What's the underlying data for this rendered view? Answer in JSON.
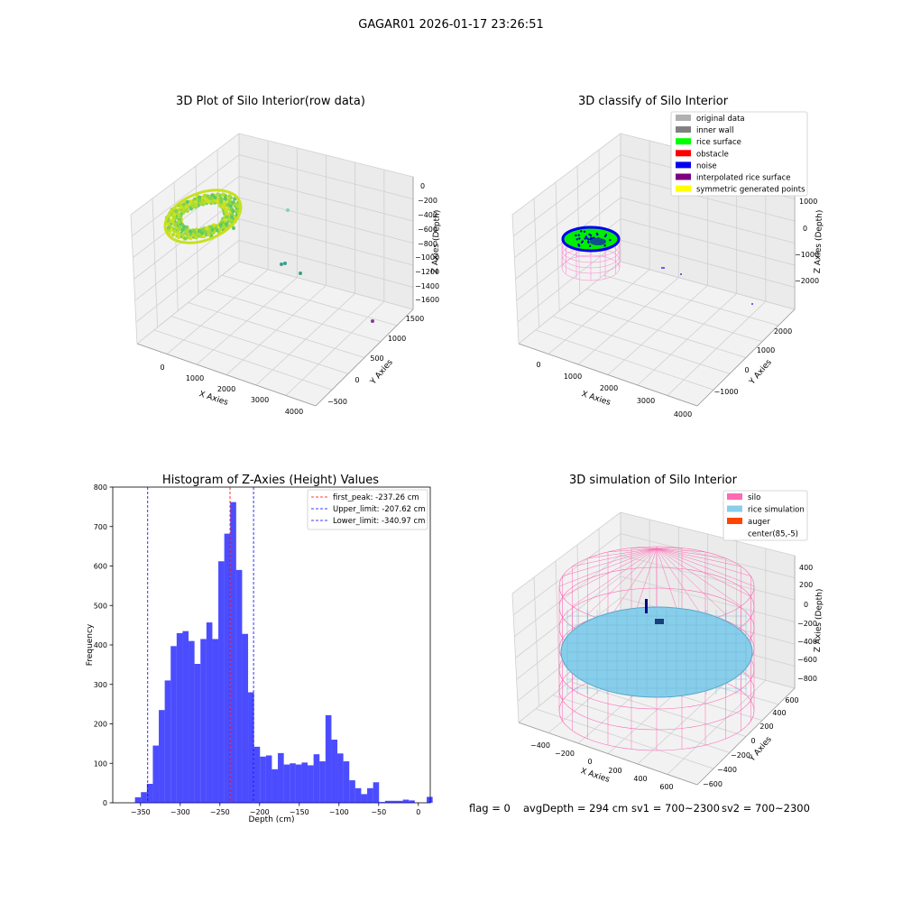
{
  "suptitle": "GAGAR01 2026-01-17 23:26:51",
  "status": {
    "flag": "flag = 0",
    "avg": "avgDepth = 294 cm",
    "sv1": "sv1 = 700~2300",
    "sv2": "sv2 = 700~2300"
  },
  "chart_data": [
    {
      "type": "scatter",
      "projection": "3d",
      "title": "3D Plot of Silo Interior(row data)",
      "xlabel": "X Axies",
      "ylabel": "Y Axies",
      "zlabel": "Z Axies (Depth)",
      "xticks": [
        "0",
        "1000",
        "2000",
        "3000",
        "4000"
      ],
      "yticks": [
        "−500",
        "0",
        "500",
        "1000",
        "1500"
      ],
      "zticks": [
        "0",
        "−200",
        "−400",
        "−600",
        "−800",
        "−1000",
        "−1200",
        "−1400",
        "−1600"
      ],
      "colormap": "viridis",
      "description_points": "dense point cloud ring near origin, few sparse outliers"
    },
    {
      "type": "scatter",
      "projection": "3d",
      "title": "3D classify of Silo Interior",
      "xlabel": "X Axies",
      "ylabel": "Y Axies",
      "zlabel": "Z Axies (Depth)",
      "xticks": [
        "0",
        "1000",
        "2000",
        "3000",
        "4000"
      ],
      "yticks": [
        "−1000",
        "0",
        "1000",
        "2000"
      ],
      "zticks": [
        "1000",
        "0",
        "−1000",
        "−2000"
      ],
      "legend": [
        {
          "label": "original data",
          "color": "#b0b0b0"
        },
        {
          "label": "inner wall",
          "color": "#808080"
        },
        {
          "label": "rice surface",
          "color": "#00ff00"
        },
        {
          "label": "obstacle",
          "color": "#ff0000"
        },
        {
          "label": "noise",
          "color": "#0000ee"
        },
        {
          "label": "interpolated rice surface",
          "color": "#800080"
        },
        {
          "label": "symmetric generated points",
          "color": "#ffff00"
        }
      ],
      "legend_loc": "upper right"
    },
    {
      "type": "bar",
      "title": "Histogram of Z-Axies (Height) Values",
      "xlabel": "Depth (cm)",
      "ylabel": "Frequency",
      "xlim": [
        -385,
        15
      ],
      "ylim": [
        0,
        800
      ],
      "xticks": [
        -350,
        -300,
        -250,
        -200,
        -150,
        -100,
        -50,
        0
      ],
      "yticks": [
        0,
        100,
        200,
        300,
        400,
        500,
        600,
        700,
        800
      ],
      "bin_width": 7.5,
      "bin_start": -357,
      "values": [
        14,
        27,
        48,
        145,
        235,
        310,
        397,
        430,
        435,
        410,
        352,
        415,
        457,
        415,
        612,
        682,
        762,
        590,
        428,
        280,
        142,
        117,
        120,
        85,
        126,
        97,
        100,
        97,
        102,
        95,
        123,
        105,
        222,
        160,
        125,
        105,
        57,
        37,
        22,
        37,
        52,
        2,
        5,
        5,
        5,
        8,
        6,
        0,
        0,
        15
      ],
      "color": "#0000ff",
      "vlines": [
        {
          "label": "first_peak: -237.26 cm",
          "x": -237.26,
          "color": "#ff0000"
        },
        {
          "label": "Upper_limit: -207.62 cm",
          "x": -207.62,
          "color": "#0000ff"
        },
        {
          "label": "Lower_limit: -340.97 cm",
          "x": -340.97,
          "color": "#0000ff"
        }
      ],
      "legend_loc": "upper right"
    },
    {
      "type": "surface",
      "projection": "3d",
      "title": "3D simulation of Silo Interior",
      "xlabel": "X Axies",
      "ylabel": "Y Axies",
      "zlabel": "Z Axies (Depth)",
      "xticks": [
        "−400",
        "−200",
        "0",
        "200",
        "400",
        "600"
      ],
      "yticks": [
        "−600",
        "−400",
        "−200",
        "0",
        "200",
        "400",
        "600"
      ],
      "zticks": [
        "400",
        "200",
        "0",
        "−200",
        "−400",
        "−600",
        "−800"
      ],
      "legend": [
        {
          "label": "silo",
          "color": "#ff69b4"
        },
        {
          "label": "rice simulation",
          "color": "#87ceeb"
        },
        {
          "label": "auger",
          "color": "#ff4500"
        },
        {
          "label": "center(85,-5)",
          "color": ""
        }
      ],
      "legend_loc": "upper right"
    }
  ]
}
